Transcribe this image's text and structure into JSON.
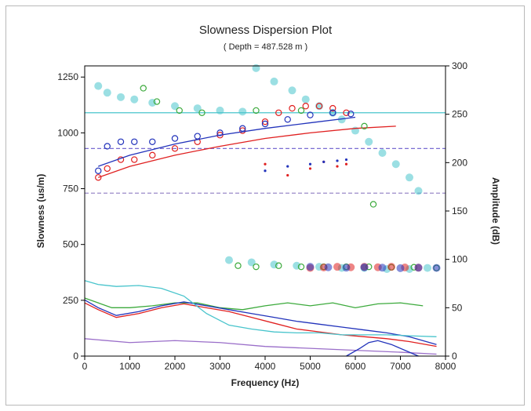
{
  "chart_data": {
    "type": "scatter",
    "title": "Slowness Dispersion Plot",
    "subtitle": "( Depth = 487.528 m )",
    "xlabel": "Frequency (Hz)",
    "ylabel": "Slowness (us/m)",
    "y2label": "Amplitude (dB)",
    "xlim": [
      0,
      8000
    ],
    "ylim": [
      0,
      1300
    ],
    "y2lim": [
      0,
      300
    ],
    "xticks": [
      "0",
      "1000",
      "2000",
      "3000",
      "4000",
      "5000",
      "6000",
      "7000",
      "8000"
    ],
    "yticks": [
      "0",
      "250",
      "500",
      "750",
      "1000",
      "1250"
    ],
    "y2ticks": [
      "0",
      "50",
      "100",
      "150",
      "200",
      "250",
      "300"
    ],
    "grid": false,
    "reference_lines": [
      {
        "axis": "y",
        "value": 930,
        "color": "#6a5acd"
      },
      {
        "axis": "y",
        "value": 730,
        "color": "#9a8ac9"
      },
      {
        "axis": "y",
        "value": 1090,
        "color": "#48c4cc"
      }
    ],
    "series": [
      {
        "color": "#48c4cc",
        "marker": "filled-circle",
        "x": [
          300,
          500,
          800,
          1100,
          1500,
          2000,
          2500,
          3000,
          3500,
          3800,
          4200,
          4600,
          4900,
          5200,
          5500,
          5700,
          6000,
          6300,
          6600,
          6900,
          7200,
          7400
        ],
        "y": [
          1210,
          1180,
          1160,
          1150,
          1135,
          1120,
          1110,
          1100,
          1095,
          1290,
          1230,
          1190,
          1150,
          1120,
          1090,
          1060,
          1010,
          960,
          910,
          860,
          800,
          740
        ]
      },
      {
        "color": "#e02020",
        "marker": "open-circle",
        "x": [
          300,
          500,
          800,
          1100,
          1500,
          2000,
          2500,
          3000,
          3500,
          4000,
          4300,
          4600,
          4900,
          5200,
          5500,
          5800
        ],
        "y": [
          800,
          840,
          880,
          880,
          900,
          930,
          960,
          990,
          1010,
          1050,
          1090,
          1110,
          1120,
          1120,
          1110,
          1090
        ]
      },
      {
        "color": "#2233bb",
        "marker": "open-circle",
        "x": [
          300,
          500,
          800,
          1100,
          1500,
          2000,
          2500,
          3000,
          3500,
          4000,
          4500,
          5000,
          5500,
          5900
        ],
        "y": [
          830,
          940,
          960,
          960,
          960,
          975,
          985,
          1000,
          1020,
          1040,
          1060,
          1080,
          1090,
          1085
        ]
      },
      {
        "color": "#e02020",
        "marker": "line",
        "x": [
          300,
          1000,
          2000,
          3000,
          4000,
          5000,
          6000,
          6900
        ],
        "y": [
          800,
          850,
          900,
          940,
          975,
          1000,
          1020,
          1030
        ]
      },
      {
        "color": "#2233bb",
        "marker": "line",
        "x": [
          300,
          1000,
          2000,
          3000,
          4000,
          5000,
          6000
        ],
        "y": [
          850,
          900,
          950,
          990,
          1020,
          1045,
          1070
        ]
      },
      {
        "color": "#3caa3c",
        "marker": "open-circle",
        "x": [
          1300,
          1600,
          2100,
          2600,
          3800,
          4800,
          6200,
          6400
        ],
        "y": [
          1200,
          1140,
          1100,
          1090,
          1100,
          1100,
          1030,
          680
        ]
      },
      {
        "color": "#48c4cc",
        "marker": "filled-circle",
        "x": [
          3200,
          3700,
          4200,
          4700,
          5200,
          5700,
          6200,
          6700,
          7200,
          7600
        ],
        "y": [
          430,
          420,
          410,
          405,
          400,
          395,
          395,
          390,
          390,
          395
        ]
      },
      {
        "color": "#3caa3c",
        "marker": "open-circle",
        "x": [
          3400,
          3800,
          4300,
          4800,
          5300,
          5800,
          6300,
          6800,
          7300,
          7800
        ],
        "y": [
          405,
          400,
          405,
          400,
          400,
          400,
          400,
          398,
          398,
          395
        ]
      },
      {
        "color": "#e02020",
        "marker": "filled-circle",
        "x": [
          5000,
          5300,
          5600,
          5900,
          6200,
          6500,
          6800,
          7100,
          7400
        ],
        "y": [
          395,
          397,
          400,
          398,
          400,
          398,
          400,
          397,
          396
        ]
      },
      {
        "color": "#2233bb",
        "marker": "filled-circle",
        "x": [
          5000,
          5400,
          5800,
          6200,
          6600,
          7000,
          7400,
          7800
        ],
        "y": [
          400,
          398,
          396,
          398,
          396,
          394,
          396,
          395
        ]
      },
      {
        "color": "#e02020",
        "marker": "small-dot",
        "x": [
          4000,
          4500,
          5000,
          5300,
          5600,
          5800
        ],
        "y": [
          860,
          810,
          840,
          870,
          850,
          860
        ]
      },
      {
        "color": "#2233bb",
        "marker": "small-dot",
        "x": [
          4000,
          4500,
          5000,
          5300,
          5600,
          5800
        ],
        "y": [
          830,
          850,
          860,
          870,
          875,
          880
        ]
      },
      {
        "color": "#3caa3c",
        "marker": "line",
        "axis": "y2",
        "x": [
          0,
          300,
          600,
          1000,
          1500,
          2000,
          2500,
          3000,
          3500,
          4000,
          4500,
          5000,
          5500,
          6000,
          6500,
          7000,
          7500
        ],
        "y": [
          60,
          55,
          50,
          50,
          52,
          55,
          55,
          50,
          48,
          52,
          55,
          52,
          55,
          50,
          54,
          55,
          52
        ]
      },
      {
        "color": "#2233bb",
        "marker": "line",
        "axis": "y2",
        "x": [
          0,
          300,
          700,
          1200,
          1700,
          2200,
          2700,
          3200,
          3700,
          4200,
          4700,
          5200,
          5700,
          6200,
          6700,
          7200,
          7800
        ],
        "y": [
          58,
          50,
          42,
          46,
          52,
          56,
          52,
          48,
          44,
          40,
          36,
          33,
          30,
          27,
          24,
          20,
          12
        ]
      },
      {
        "color": "#e02020",
        "marker": "line",
        "axis": "y2",
        "x": [
          0,
          300,
          700,
          1200,
          1700,
          2200,
          2700,
          3200,
          3700,
          4200,
          4700,
          5200,
          5700,
          6200,
          6700,
          7200,
          7800
        ],
        "y": [
          55,
          48,
          40,
          44,
          50,
          54,
          50,
          46,
          40,
          34,
          28,
          25,
          22,
          20,
          18,
          15,
          10
        ]
      },
      {
        "color": "#48c4cc",
        "marker": "line",
        "axis": "y2",
        "x": [
          0,
          300,
          700,
          1200,
          1700,
          2200,
          2700,
          3200,
          3700,
          4200,
          4700,
          5200,
          5700,
          6200,
          6700,
          7200,
          7800
        ],
        "y": [
          78,
          74,
          72,
          73,
          70,
          62,
          44,
          32,
          28,
          25,
          24,
          24,
          22,
          22,
          22,
          21,
          20
        ]
      },
      {
        "color": "#9a6ec9",
        "marker": "line",
        "axis": "y2",
        "x": [
          0,
          1000,
          2000,
          3000,
          4000,
          5000,
          6000,
          7000,
          7800
        ],
        "y": [
          18,
          14,
          16,
          14,
          10,
          8,
          6,
          4,
          2
        ]
      },
      {
        "color": "#2233bb",
        "marker": "line",
        "axis": "y2",
        "x": [
          5800,
          6100,
          6300,
          6500,
          6800,
          7100,
          7400
        ],
        "y": [
          0,
          8,
          14,
          16,
          12,
          6,
          0
        ]
      }
    ]
  }
}
